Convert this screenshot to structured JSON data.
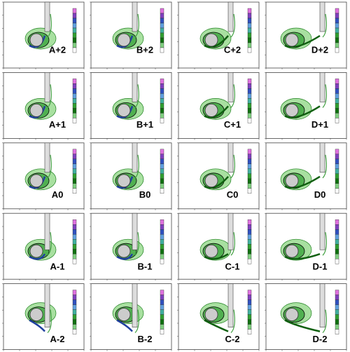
{
  "panels": [
    {
      "label": "A+2"
    },
    {
      "label": "B+2"
    },
    {
      "label": "C+2"
    },
    {
      "label": "D+2"
    },
    {
      "label": "A+1"
    },
    {
      "label": "B+1"
    },
    {
      "label": "C+1"
    },
    {
      "label": "D+1"
    },
    {
      "label": "A0"
    },
    {
      "label": "B0"
    },
    {
      "label": "C0"
    },
    {
      "label": "D0"
    },
    {
      "label": "A-1"
    },
    {
      "label": "B-1"
    },
    {
      "label": "C-1"
    },
    {
      "label": "D-1"
    },
    {
      "label": "A-2"
    },
    {
      "label": "B-2"
    },
    {
      "label": "C-2"
    },
    {
      "label": "D-2"
    }
  ]
}
